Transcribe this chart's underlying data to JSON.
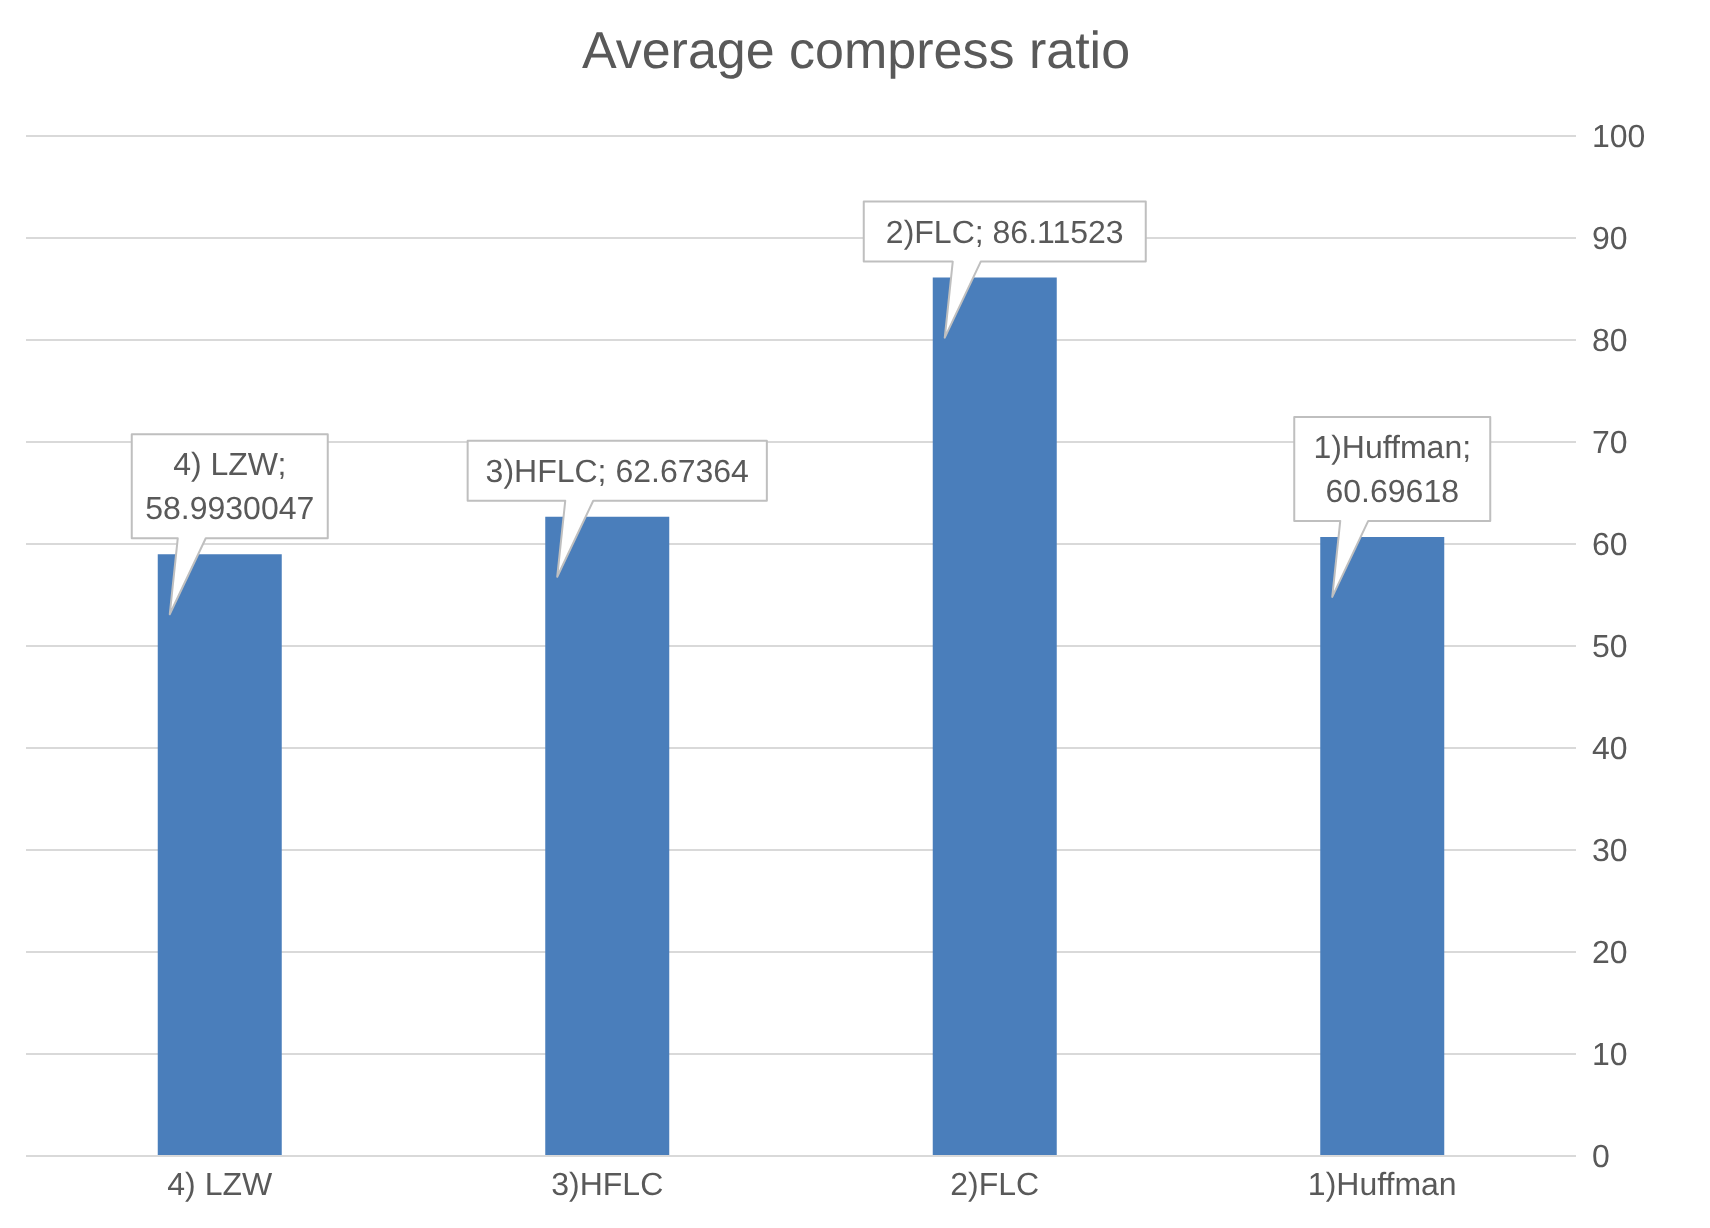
{
  "chart_data": {
    "type": "bar",
    "title": "Average compress ratio",
    "categories": [
      "4) LZW",
      "3)HFLC",
      "2)FLC",
      "1)Huffman"
    ],
    "values": [
      58.9930047,
      62.67364,
      86.11523,
      60.69618
    ],
    "value_labels": [
      "4) LZW; 58.9930047",
      "3)HFLC; 62.67364",
      "2)FLC; 86.11523",
      "1)Huffman; 60.69618"
    ],
    "color": "#4a7ebb",
    "ylim": [
      0,
      100
    ],
    "yticks": [
      0,
      10,
      20,
      30,
      40,
      50,
      60,
      70,
      80,
      90,
      100
    ],
    "grid": "y"
  }
}
